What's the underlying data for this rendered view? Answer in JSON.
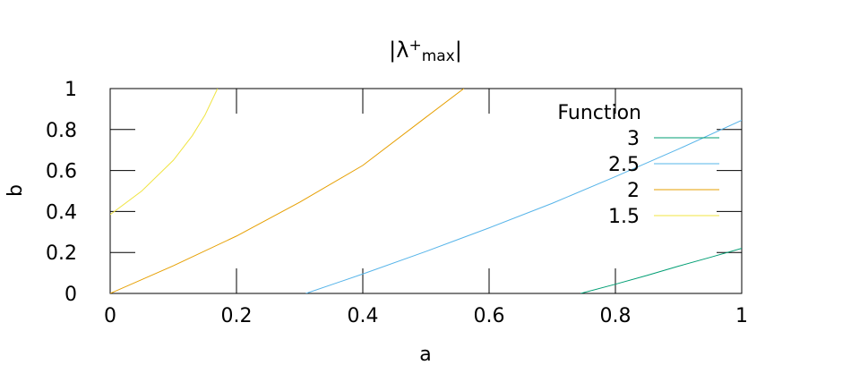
{
  "chart_data": {
    "type": "line",
    "title_prefix": "|λ",
    "title_sup": "+",
    "title_sub": "max",
    "title_suffix": "|",
    "xlabel": "a",
    "ylabel": "b",
    "xlim": [
      0,
      1
    ],
    "ylim": [
      0,
      1
    ],
    "x_ticks": [
      0,
      0.2,
      0.4,
      0.6,
      0.8,
      1
    ],
    "x_tick_labels": [
      "0",
      "0.2",
      "0.4",
      "0.6",
      "0.8",
      "1"
    ],
    "y_ticks": [
      0,
      0.2,
      0.4,
      0.6,
      0.8,
      1
    ],
    "y_tick_labels": [
      "0",
      "0.2",
      "0.4",
      "0.6",
      "0.8",
      "1"
    ],
    "grid": false,
    "legend_title": "Function",
    "legend_position": "top-right inside",
    "series": [
      {
        "name": "3",
        "color": "#009e73",
        "x": [
          0.745,
          0.8,
          0.85,
          0.9,
          0.95,
          1.0
        ],
        "y": [
          0.0,
          0.045,
          0.088,
          0.133,
          0.176,
          0.22
        ]
      },
      {
        "name": "2.5",
        "color": "#56b4e9",
        "x": [
          0.31,
          0.4,
          0.5,
          0.6,
          0.7,
          0.8,
          0.9,
          1.0
        ],
        "y": [
          0.0,
          0.095,
          0.205,
          0.32,
          0.44,
          0.57,
          0.705,
          0.845
        ]
      },
      {
        "name": "2",
        "color": "#e69f00",
        "x": [
          0.0,
          0.1,
          0.2,
          0.3,
          0.4,
          0.5,
          0.56
        ],
        "y": [
          0.0,
          0.135,
          0.28,
          0.445,
          0.625,
          0.86,
          1.0
        ]
      },
      {
        "name": "1.5",
        "color": "#f0e442",
        "x": [
          0.0,
          0.05,
          0.1,
          0.13,
          0.15,
          0.17
        ],
        "y": [
          0.385,
          0.5,
          0.65,
          0.77,
          0.87,
          1.0
        ]
      }
    ]
  }
}
